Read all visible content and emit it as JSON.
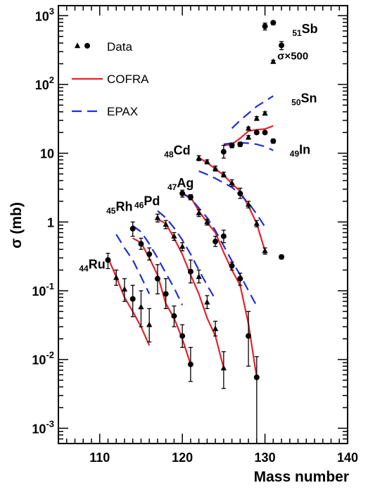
{
  "chart_data": {
    "type": "scatter",
    "xlabel": "Mass number",
    "ylabel": "σ (mb)",
    "xlim": [
      105,
      140
    ],
    "ylim": [
      0.0006,
      1400
    ],
    "log_y": true,
    "x_ticks": [
      110,
      120,
      130,
      140
    ],
    "y_ticks": [
      {
        "value": 0.001,
        "base": "10",
        "exp": "-3"
      },
      {
        "value": 0.01,
        "base": "10",
        "exp": "-2"
      },
      {
        "value": 0.1,
        "base": "10",
        "exp": "-1"
      },
      {
        "value": 1,
        "text": "1"
      },
      {
        "value": 10,
        "text": "10"
      },
      {
        "value": 100,
        "base": "10",
        "exp": "2"
      },
      {
        "value": 1000,
        "base": "10",
        "exp": "3"
      }
    ],
    "legend": [
      {
        "label": "Data",
        "style": "markers"
      },
      {
        "label": "COFRA",
        "style": "solid",
        "color": "#e8202a"
      },
      {
        "label": "EPAX",
        "style": "dashed",
        "color": "#1f2fd8"
      }
    ],
    "annotations": [
      {
        "text": "σ×500",
        "x": 131.5,
        "y": 230
      }
    ],
    "elements": [
      {
        "z": "44",
        "sym": "Ru",
        "x": 107.5,
        "y": 0.21
      },
      {
        "z": "45",
        "sym": "Rh",
        "x": 110.8,
        "y": 1.45
      },
      {
        "z": "46",
        "sym": "Pd",
        "x": 114.2,
        "y": 1.75
      },
      {
        "z": "47",
        "sym": "Ag",
        "x": 118.2,
        "y": 3.2
      },
      {
        "z": "48",
        "sym": "Cd",
        "x": 117.8,
        "y": 9.6
      },
      {
        "z": "49",
        "sym": "In",
        "x": 133.0,
        "y": 9.8
      },
      {
        "z": "50",
        "sym": "Sn",
        "x": 133.2,
        "y": 55
      },
      {
        "z": "51",
        "sym": "Sb",
        "x": 133.3,
        "y": 560
      }
    ],
    "data_points": [
      {
        "x": 111,
        "y": 0.28,
        "marker": "circle",
        "err": [
          0.21,
          0.35
        ]
      },
      {
        "x": 112,
        "y": 0.155,
        "marker": "triangle",
        "err": [
          0.12,
          0.2
        ]
      },
      {
        "x": 113,
        "y": 0.105,
        "marker": "triangle",
        "err": [
          0.07,
          0.15
        ]
      },
      {
        "x": 114,
        "y": 0.076,
        "marker": "circle",
        "err": [
          0.042,
          0.12
        ]
      },
      {
        "x": 115,
        "y": 0.058,
        "marker": "triangle",
        "err": [
          0.03,
          0.1
        ]
      },
      {
        "x": 116,
        "y": 0.032,
        "marker": "triangle",
        "err": [
          0.018,
          0.055
        ]
      },
      {
        "x": 114,
        "y": 0.8,
        "marker": "circle",
        "err": [
          0.62,
          1.0
        ]
      },
      {
        "x": 115,
        "y": 0.48,
        "marker": "circle",
        "err": [
          0.4,
          0.58
        ]
      },
      {
        "x": 116,
        "y": 0.34,
        "marker": "circle",
        "err": [
          0.28,
          0.42
        ]
      },
      {
        "x": 117,
        "y": 0.15,
        "marker": "circle",
        "err": [
          0.09,
          0.24
        ]
      },
      {
        "x": 118,
        "y": 0.09,
        "marker": "circle",
        "err": [
          0.055,
          0.15
        ]
      },
      {
        "x": 119,
        "y": 0.043,
        "marker": "circle",
        "err": [
          0.03,
          0.06
        ]
      },
      {
        "x": 117,
        "y": 1.15,
        "marker": "triangle",
        "err": [
          1.0,
          1.3
        ]
      },
      {
        "x": 118,
        "y": 0.92,
        "marker": "triangle",
        "err": [
          0.8,
          1.05
        ]
      },
      {
        "x": 119,
        "y": 0.62,
        "marker": "triangle",
        "err": [
          0.54,
          0.7
        ]
      },
      {
        "x": 120,
        "y": 0.44,
        "marker": "triangle",
        "err": [
          0.38,
          0.5
        ]
      },
      {
        "x": 120,
        "y": 0.022,
        "marker": "circle",
        "err": [
          0.015,
          0.032
        ]
      },
      {
        "x": 121,
        "y": 0.0085,
        "marker": "circle",
        "err": [
          0.0048,
          0.015
        ]
      },
      {
        "x": 120,
        "y": 2.6,
        "marker": "circle",
        "err": [
          2.3,
          2.9
        ]
      },
      {
        "x": 121,
        "y": 2.3,
        "marker": "circle",
        "err": [
          2.1,
          2.5
        ]
      },
      {
        "x": 122,
        "y": 1.35,
        "marker": "triangle",
        "err": [
          1.2,
          1.5
        ]
      },
      {
        "x": 123,
        "y": 1.0,
        "marker": "triangle",
        "err": [
          0.9,
          1.1
        ]
      },
      {
        "x": 124,
        "y": 0.52,
        "marker": "circle",
        "err": [
          0.44,
          0.62
        ]
      },
      {
        "x": 121,
        "y": 0.19,
        "marker": "circle",
        "err": [
          0.13,
          0.28
        ]
      },
      {
        "x": 122,
        "y": 0.16,
        "marker": "triangle",
        "err": [
          0.13,
          0.2
        ]
      },
      {
        "x": 123,
        "y": 0.068,
        "marker": "triangle",
        "err": [
          0.055,
          0.085
        ]
      },
      {
        "x": 124,
        "y": 0.028,
        "marker": "triangle",
        "err": [
          0.022,
          0.036
        ]
      },
      {
        "x": 125,
        "y": 0.0075,
        "marker": "triangle",
        "err": [
          0.0038,
          0.013
        ]
      },
      {
        "x": 122,
        "y": 8.5,
        "marker": "triangle",
        "err": [
          7.8,
          9.2
        ]
      },
      {
        "x": 123,
        "y": 7.5,
        "marker": "triangle",
        "err": [
          7.0,
          8.0
        ]
      },
      {
        "x": 124,
        "y": 6.0,
        "marker": "triangle",
        "err": [
          5.5,
          6.5
        ]
      },
      {
        "x": 125,
        "y": 4.9,
        "marker": "triangle",
        "err": [
          4.5,
          5.3
        ]
      },
      {
        "x": 126,
        "y": 3.7,
        "marker": "triangle",
        "err": [
          3.3,
          4.1
        ]
      },
      {
        "x": 127,
        "y": 2.6,
        "marker": "circle",
        "err": [
          2.2,
          3.1
        ]
      },
      {
        "x": 128,
        "y": 1.8,
        "marker": "triangle",
        "err": [
          1.6,
          2.0
        ]
      },
      {
        "x": 129,
        "y": 0.95,
        "marker": "triangle",
        "err": [
          0.85,
          1.05
        ]
      },
      {
        "x": 130,
        "y": 0.38,
        "marker": "triangle",
        "err": [
          0.34,
          0.42
        ]
      },
      {
        "x": 125,
        "y": 0.62,
        "marker": "circle",
        "err": [
          0.5,
          0.76
        ]
      },
      {
        "x": 126,
        "y": 0.23,
        "marker": "circle",
        "err": [
          0.2,
          0.26
        ]
      },
      {
        "x": 127,
        "y": 0.15,
        "marker": "circle",
        "err": [
          0.12,
          0.18
        ]
      },
      {
        "x": 128,
        "y": 0.022,
        "marker": "circle",
        "err": [
          0.008,
          0.05
        ]
      },
      {
        "x": 129,
        "y": 0.0055,
        "marker": "circle",
        "err": [
          0.0006,
          0.011
        ]
      },
      {
        "x": 132,
        "y": 0.31,
        "marker": "circle",
        "err": [
          0.29,
          0.33
        ]
      },
      {
        "x": 125,
        "y": 10.5,
        "marker": "circle",
        "err": [
          8.5,
          13.0
        ]
      },
      {
        "x": 126,
        "y": 13.0,
        "marker": "circle",
        "err": [
          12.0,
          14.0
        ]
      },
      {
        "x": 127,
        "y": 13.5,
        "marker": "circle",
        "err": [
          12.5,
          14.5
        ]
      },
      {
        "x": 128,
        "y": 17.0,
        "marker": "triangle",
        "err": [
          16.0,
          18.0
        ]
      },
      {
        "x": 129,
        "y": 20.0,
        "marker": "circle",
        "err": [
          19.0,
          21.0
        ]
      },
      {
        "x": 130,
        "y": 20.0,
        "marker": "circle",
        "err": [
          19.0,
          21.0
        ]
      },
      {
        "x": 131,
        "y": 15.0,
        "marker": "circle",
        "err": [
          14.0,
          16.0
        ]
      },
      {
        "x": 128,
        "y": 23.0,
        "marker": "triangle",
        "err": [
          22.0,
          24.0
        ]
      },
      {
        "x": 129,
        "y": 32.0,
        "marker": "triangle",
        "err": [
          30.0,
          34.0
        ]
      },
      {
        "x": 130,
        "y": 38.0,
        "marker": "triangle",
        "err": [
          36.0,
          40.0
        ]
      },
      {
        "x": 130,
        "y": 700,
        "marker": "circle",
        "err": [
          620,
          780
        ]
      },
      {
        "x": 131,
        "y": 790,
        "marker": "circle",
        "err": [
          740,
          840
        ]
      },
      {
        "x": 132,
        "y": 370,
        "marker": "circle",
        "err": [
          320,
          420
        ]
      },
      {
        "x": 131,
        "y": 215,
        "marker": "triangle",
        "err": [
          205,
          225
        ]
      }
    ],
    "series": [
      {
        "name": "COFRA",
        "style": "solid",
        "color": "#e8202a",
        "points": [
          [
            111,
            0.3
          ],
          [
            112,
            0.16
          ],
          [
            113,
            0.08
          ],
          [
            114,
            0.05
          ],
          [
            115,
            0.03
          ],
          [
            116,
            0.016
          ]
        ]
      },
      {
        "name": "COFRA",
        "style": "solid",
        "color": "#e8202a",
        "points": [
          [
            114,
            0.58
          ],
          [
            115,
            0.5
          ],
          [
            116,
            0.3
          ],
          [
            117,
            0.17
          ],
          [
            118,
            0.065
          ],
          [
            119,
            0.04
          ],
          [
            120,
            0.02
          ],
          [
            121,
            0.0085
          ]
        ]
      },
      {
        "name": "COFRA",
        "style": "solid",
        "color": "#e8202a",
        "points": [
          [
            117,
            1.1
          ],
          [
            118,
            0.95
          ],
          [
            119,
            0.58
          ],
          [
            120,
            0.34
          ],
          [
            121,
            0.17
          ],
          [
            122,
            0.09
          ],
          [
            123,
            0.04
          ],
          [
            124,
            0.022
          ],
          [
            125,
            0.0075
          ]
        ]
      },
      {
        "name": "COFRA",
        "style": "solid",
        "color": "#e8202a",
        "points": [
          [
            120,
            2.6
          ],
          [
            121,
            2.3
          ],
          [
            122,
            1.45
          ],
          [
            123,
            0.98
          ],
          [
            124,
            0.7
          ],
          [
            125,
            0.36
          ],
          [
            126,
            0.2
          ],
          [
            127,
            0.12
          ],
          [
            128,
            0.033
          ],
          [
            129,
            0.0055
          ]
        ]
      },
      {
        "name": "COFRA",
        "style": "solid",
        "color": "#e8202a",
        "points": [
          [
            122,
            8.6
          ],
          [
            123,
            7.3
          ],
          [
            124,
            5.9
          ],
          [
            125,
            4.8
          ],
          [
            126,
            3.6
          ],
          [
            127,
            2.8
          ],
          [
            128,
            1.7
          ],
          [
            129,
            0.95
          ],
          [
            130,
            0.38
          ]
        ]
      },
      {
        "name": "COFRA",
        "style": "solid",
        "color": "#e8202a",
        "points": [
          [
            125,
            13.0
          ],
          [
            126,
            13.5
          ],
          [
            127,
            16.5
          ],
          [
            128,
            21.0
          ],
          [
            129,
            22.0
          ],
          [
            130,
            22.5
          ],
          [
            131,
            25.0
          ]
        ]
      },
      {
        "name": "EPAX",
        "style": "dashed",
        "color": "#1f2fd8",
        "points": [
          [
            112,
            0.66
          ],
          [
            113,
            0.42
          ],
          [
            114,
            0.28
          ],
          [
            115,
            0.16
          ],
          [
            116,
            0.09
          ]
        ]
      },
      {
        "name": "EPAX",
        "style": "dashed",
        "color": "#1f2fd8",
        "points": [
          [
            114,
            0.88
          ],
          [
            115,
            0.72
          ],
          [
            116,
            0.48
          ],
          [
            117,
            0.3
          ],
          [
            118,
            0.18
          ],
          [
            119,
            0.11
          ],
          [
            120,
            0.062
          ]
        ]
      },
      {
        "name": "EPAX",
        "style": "dashed",
        "color": "#1f2fd8",
        "points": [
          [
            117,
            1.45
          ],
          [
            118,
            1.15
          ],
          [
            119,
            0.82
          ],
          [
            120,
            0.55
          ],
          [
            121,
            0.34
          ],
          [
            122,
            0.2
          ],
          [
            123,
            0.12
          ],
          [
            124,
            0.075
          ]
        ]
      },
      {
        "name": "EPAX",
        "style": "dashed",
        "color": "#1f2fd8",
        "points": [
          [
            120,
            2.6
          ],
          [
            121,
            2.2
          ],
          [
            122,
            1.6
          ],
          [
            123,
            1.15
          ],
          [
            124,
            0.75
          ],
          [
            125,
            0.45
          ],
          [
            126,
            0.27
          ],
          [
            127,
            0.17
          ],
          [
            128,
            0.1
          ],
          [
            129,
            0.06
          ]
        ]
      },
      {
        "name": "EPAX",
        "style": "dashed",
        "color": "#1f2fd8",
        "points": [
          [
            122,
            5.5
          ],
          [
            123,
            4.9
          ],
          [
            124,
            4.3
          ],
          [
            125,
            3.7
          ],
          [
            126,
            3.2
          ],
          [
            127,
            2.5
          ],
          [
            128,
            1.9
          ],
          [
            129,
            1.3
          ],
          [
            130,
            0.85
          ]
        ]
      },
      {
        "name": "EPAX",
        "style": "dashed",
        "color": "#1f2fd8",
        "points": [
          [
            125,
            13.5
          ],
          [
            126,
            14.0
          ],
          [
            127,
            14.2
          ],
          [
            128,
            14.0
          ],
          [
            129,
            13.5
          ],
          [
            130,
            12.5
          ],
          [
            131,
            11.0
          ]
        ]
      },
      {
        "name": "EPAX",
        "style": "dashed",
        "color": "#1f2fd8",
        "points": [
          [
            126,
            23.0
          ],
          [
            127,
            30.0
          ],
          [
            128,
            38.0
          ],
          [
            129,
            48.0
          ],
          [
            130,
            57.0
          ],
          [
            131,
            68.0
          ]
        ]
      }
    ]
  }
}
